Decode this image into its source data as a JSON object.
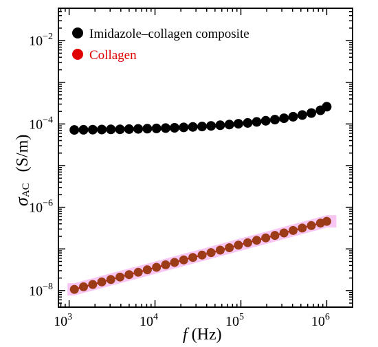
{
  "chart_data": {
    "type": "scatter",
    "x_scale": "log",
    "y_scale": "log",
    "xlim": [
      750,
      2000000
    ],
    "ylim": [
      4e-09,
      0.06
    ],
    "xlabel": {
      "italic": "f",
      "rest": " (Hz)"
    },
    "ylabel": {
      "symbol": "σ",
      "subscript": "AC",
      "units": "(S/m)"
    },
    "x_ticks": [
      {
        "value": 1000,
        "base": "10",
        "exp": "3"
      },
      {
        "value": 10000,
        "base": "10",
        "exp": "4"
      },
      {
        "value": 100000,
        "base": "10",
        "exp": "5"
      },
      {
        "value": 1000000,
        "base": "10",
        "exp": "6"
      }
    ],
    "y_ticks": [
      {
        "value": 1e-08,
        "base": "10",
        "exp": "−8"
      },
      {
        "value": 1e-06,
        "base": "10",
        "exp": "−6"
      },
      {
        "value": 0.0001,
        "base": "10",
        "exp": "−4"
      },
      {
        "value": 0.01,
        "base": "10",
        "exp": "−2"
      }
    ],
    "x": [
      1150,
      1470,
      1880,
      2400,
      3060,
      3910,
      4990,
      6370,
      8130,
      10400,
      13300,
      16900,
      21600,
      27600,
      35300,
      45000,
      57500,
      73400,
      93700,
      120000,
      153000,
      195000,
      249000,
      318000,
      406000,
      519000,
      662000,
      846000,
      1000000
    ],
    "legend_position": "top-left",
    "series": [
      {
        "name": "Imidazole–collagen composite",
        "color": "#000000",
        "values": [
          7.2e-05,
          7.25e-05,
          7.3e-05,
          7.35e-05,
          7.4e-05,
          7.45e-05,
          7.52e-05,
          7.6e-05,
          7.7e-05,
          7.82e-05,
          7.95e-05,
          8.1e-05,
          8.28e-05,
          8.48e-05,
          8.7e-05,
          8.98e-05,
          9.3e-05,
          9.68e-05,
          0.000101,
          0.000106,
          0.000112,
          0.000119,
          0.000127,
          0.000137,
          0.000149,
          0.000164,
          0.000183,
          0.000213,
          0.00026
        ]
      },
      {
        "name": "Collagen",
        "color": "#e00000",
        "marker_color": "#9b3b17",
        "band_color": "#f7c6f2",
        "values": [
          1.07e-08,
          1.23e-08,
          1.4e-08,
          1.61e-08,
          1.84e-08,
          2.11e-08,
          2.41e-08,
          2.76e-08,
          3.16e-08,
          3.62e-08,
          4.15e-08,
          4.75e-08,
          5.44e-08,
          6.23e-08,
          7.13e-08,
          8.16e-08,
          9.35e-08,
          1.07e-07,
          1.23e-07,
          1.41e-07,
          1.61e-07,
          1.84e-07,
          2.11e-07,
          2.42e-07,
          2.77e-07,
          3.17e-07,
          3.63e-07,
          4.16e-07,
          4.6e-07
        ]
      }
    ]
  }
}
